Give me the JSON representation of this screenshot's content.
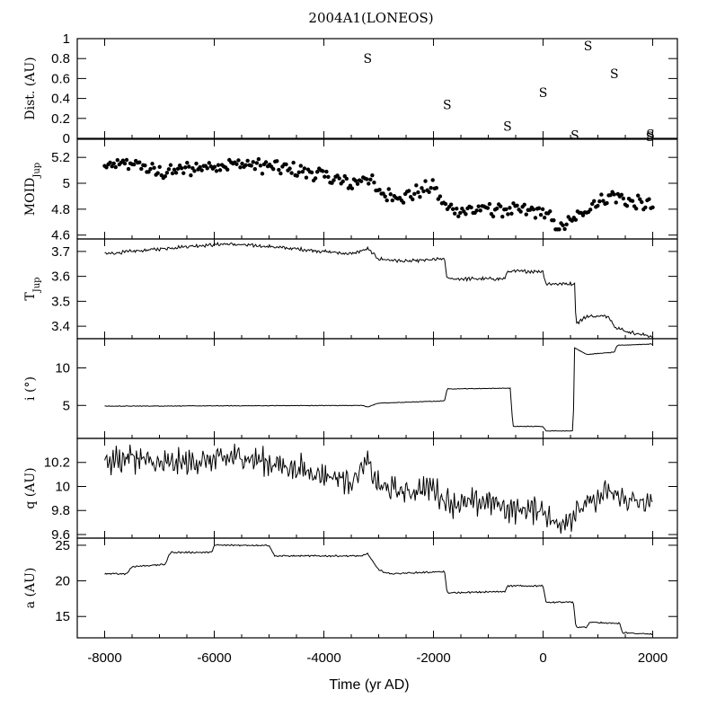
{
  "chart_data": {
    "type": "line",
    "title": "2004A1(LONEOS)",
    "xlabel": "Time (yr AD)",
    "xlim": [
      -8500,
      2450
    ],
    "xticks": [
      -8000,
      -6000,
      -4000,
      -2000,
      0,
      2000
    ],
    "panels": [
      {
        "id": "dist",
        "type": "scatter",
        "ylabel": "Dist. (AU)",
        "ylim": [
          0,
          1
        ],
        "yticks": [
          0,
          0.2,
          0.4,
          0.6,
          0.8,
          1
        ],
        "ytick_labels": [
          "0",
          "0.2",
          "0.4",
          "0.6",
          "0.8",
          "1"
        ],
        "marker": "S",
        "points": [
          {
            "x": -3200,
            "y": 0.8,
            "label": "S"
          },
          {
            "x": -1750,
            "y": 0.34,
            "label": "S"
          },
          {
            "x": -650,
            "y": 0.12,
            "label": "S"
          },
          {
            "x": 0,
            "y": 0.46,
            "label": "S"
          },
          {
            "x": 580,
            "y": 0.03,
            "label": "S"
          },
          {
            "x": 820,
            "y": 0.93,
            "label": "S"
          },
          {
            "x": 1300,
            "y": 0.65,
            "label": "S"
          },
          {
            "x": 1950,
            "y": 0.02,
            "label": "S"
          },
          {
            "x": 1960,
            "y": 0.04,
            "label": "S"
          }
        ]
      },
      {
        "id": "moid",
        "type": "scatter",
        "ylabel": "MOID",
        "ylabel_sub": "Jup",
        "ylim": [
          4.57,
          5.34
        ],
        "yticks": [
          4.6,
          4.8,
          5,
          5.2
        ],
        "ytick_labels": [
          "4.6",
          "4.8",
          "5",
          "5.2"
        ],
        "anchors_x": [
          -8000,
          -7500,
          -7000,
          -6000,
          -5500,
          -5000,
          -4500,
          -4000,
          -3500,
          -3200,
          -3000,
          -2500,
          -2000,
          -1800,
          -1500,
          -1000,
          -500,
          0,
          300,
          600,
          900,
          1300,
          1600,
          2000
        ],
        "anchors_y": [
          5.12,
          5.16,
          5.08,
          5.14,
          5.15,
          5.13,
          5.1,
          5.06,
          4.99,
          5.06,
          4.92,
          4.9,
          4.98,
          4.82,
          4.79,
          4.8,
          4.79,
          4.78,
          4.65,
          4.73,
          4.84,
          4.91,
          4.85,
          4.83
        ],
        "scatter_amplitude": 0.045,
        "count": 300
      },
      {
        "id": "tjup",
        "type": "line",
        "ylabel": "T",
        "ylabel_sub": "Jup",
        "ylim": [
          3.35,
          3.75
        ],
        "yticks": [
          3.4,
          3.5,
          3.6,
          3.7
        ],
        "ytick_labels": [
          "3.4",
          "3.5",
          "3.6",
          "3.7"
        ],
        "anchors_x": [
          -8000,
          -7500,
          -6500,
          -5800,
          -5000,
          -4500,
          -3500,
          -3200,
          -3000,
          -2500,
          -1800,
          -1750,
          -700,
          -650,
          0,
          50,
          580,
          600,
          800,
          1200,
          1300,
          1500,
          1950,
          2000
        ],
        "anchors_y": [
          3.69,
          3.7,
          3.72,
          3.73,
          3.72,
          3.71,
          3.69,
          3.71,
          3.67,
          3.66,
          3.67,
          3.59,
          3.59,
          3.62,
          3.62,
          3.57,
          3.57,
          3.41,
          3.44,
          3.44,
          3.4,
          3.38,
          3.36,
          3.36
        ],
        "noise": 0.005
      },
      {
        "id": "incl",
        "type": "line",
        "ylabel": "i (°)",
        "ylim": [
          0.6,
          13.9
        ],
        "yticks": [
          5,
          10
        ],
        "ytick_labels": [
          "5",
          "10"
        ],
        "anchors_x": [
          -8000,
          -3300,
          -3200,
          -3000,
          -1800,
          -1750,
          -600,
          -550,
          0,
          50,
          550,
          570,
          800,
          1300,
          1350,
          2000
        ],
        "anchors_y": [
          4.9,
          5.0,
          4.8,
          5.3,
          5.6,
          7.2,
          7.3,
          2.2,
          2.2,
          1.6,
          1.6,
          12.7,
          11.8,
          12.1,
          13.0,
          13.2
        ],
        "noise": 0.03
      },
      {
        "id": "q",
        "type": "line",
        "ylabel": "q (AU)",
        "ylim": [
          9.57,
          10.4
        ],
        "yticks": [
          9.6,
          9.8,
          10,
          10.2
        ],
        "ytick_labels": [
          "9.6",
          "9.8",
          "10",
          "10.2"
        ],
        "anchors_x": [
          -8000,
          -7500,
          -7000,
          -6000,
          -5500,
          -5000,
          -4500,
          -4000,
          -3500,
          -3200,
          -3000,
          -2500,
          -2000,
          -1800,
          -1500,
          -1000,
          -500,
          0,
          200,
          500,
          800,
          1200,
          1600,
          2000
        ],
        "anchors_y": [
          10.2,
          10.25,
          10.18,
          10.22,
          10.25,
          10.2,
          10.15,
          10.1,
          10.05,
          10.2,
          10.0,
          9.95,
          10.0,
          9.88,
          9.85,
          9.88,
          9.8,
          9.82,
          9.68,
          9.75,
          9.85,
          9.95,
          9.88,
          9.84
        ],
        "noise": 0.05
      },
      {
        "id": "a",
        "type": "line",
        "ylabel": "a (AU)",
        "ylim": [
          12.0,
          26.0
        ],
        "yticks": [
          15,
          20,
          25
        ],
        "ytick_labels": [
          "15",
          "20",
          "25"
        ],
        "anchors_x": [
          -8000,
          -7600,
          -7500,
          -6900,
          -6800,
          -6050,
          -6000,
          -5000,
          -4900,
          -3300,
          -3200,
          -3000,
          -2800,
          -1800,
          -1750,
          -700,
          -650,
          0,
          50,
          550,
          600,
          800,
          850,
          1400,
          1450,
          2000
        ],
        "anchors_y": [
          21.0,
          21.0,
          22.0,
          22.3,
          24.0,
          24.0,
          25.0,
          25.0,
          23.5,
          23.5,
          23.8,
          21.5,
          21.0,
          21.3,
          18.3,
          18.5,
          19.3,
          19.3,
          17.0,
          17.0,
          13.5,
          13.5,
          14.2,
          14.0,
          12.7,
          12.5
        ],
        "noise": 0.08
      }
    ]
  }
}
